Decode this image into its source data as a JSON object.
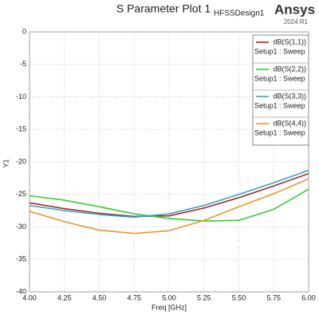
{
  "chart_data": {
    "type": "line",
    "title": "S Parameter Plot 1",
    "design": "HFSSDesign1",
    "brand": "Ansys",
    "version": "2024 R1",
    "x_label": "Freq [GHz]",
    "y_label": "Y1",
    "x": [
      4.0,
      4.25,
      4.5,
      4.75,
      5.0,
      5.25,
      5.5,
      5.75,
      6.0
    ],
    "xlim": [
      4.0,
      6.0
    ],
    "xticks": [
      {
        "value": 4.0,
        "label": "4.00"
      },
      {
        "value": 4.25,
        "label": "4.25"
      },
      {
        "value": 4.5,
        "label": "4.50"
      },
      {
        "value": 4.75,
        "label": "4.75"
      },
      {
        "value": 5.0,
        "label": "5.00"
      },
      {
        "value": 5.25,
        "label": "5.25"
      },
      {
        "value": 5.5,
        "label": "5.50"
      },
      {
        "value": 5.75,
        "label": "5.75"
      },
      {
        "value": 6.0,
        "label": "6.00"
      }
    ],
    "ylim": [
      -40,
      0
    ],
    "yticks": [
      0,
      -5,
      -10,
      -15,
      -20,
      -25,
      -30,
      -35,
      -40
    ],
    "grid": true,
    "legend": "upper right",
    "series": [
      {
        "name": "dB(S(1,1))",
        "setup": "Setup1 : Sweep",
        "color": "#b22222",
        "values": [
          -26.3,
          -27.2,
          -27.9,
          -28.4,
          -28.3,
          -27.1,
          -25.5,
          -23.7,
          -21.8
        ]
      },
      {
        "name": "dB(S(2,2))",
        "setup": "Setup1 : Sweep",
        "color": "#33cc33",
        "values": [
          -25.2,
          -25.9,
          -26.9,
          -28.0,
          -28.7,
          -29.1,
          -29.0,
          -27.3,
          -24.2
        ]
      },
      {
        "name": "dB(S(3,3))",
        "setup": "Setup1 : Sweep",
        "color": "#2aa8c8",
        "values": [
          -26.7,
          -27.5,
          -28.1,
          -28.5,
          -28.0,
          -26.7,
          -25.0,
          -23.2,
          -21.3
        ]
      },
      {
        "name": "dB(S(4,4))",
        "setup": "Setup1 : Sweep",
        "color": "#e8962a",
        "values": [
          -27.6,
          -29.2,
          -30.5,
          -31.0,
          -30.6,
          -29.0,
          -26.9,
          -24.9,
          -22.6
        ]
      }
    ]
  }
}
